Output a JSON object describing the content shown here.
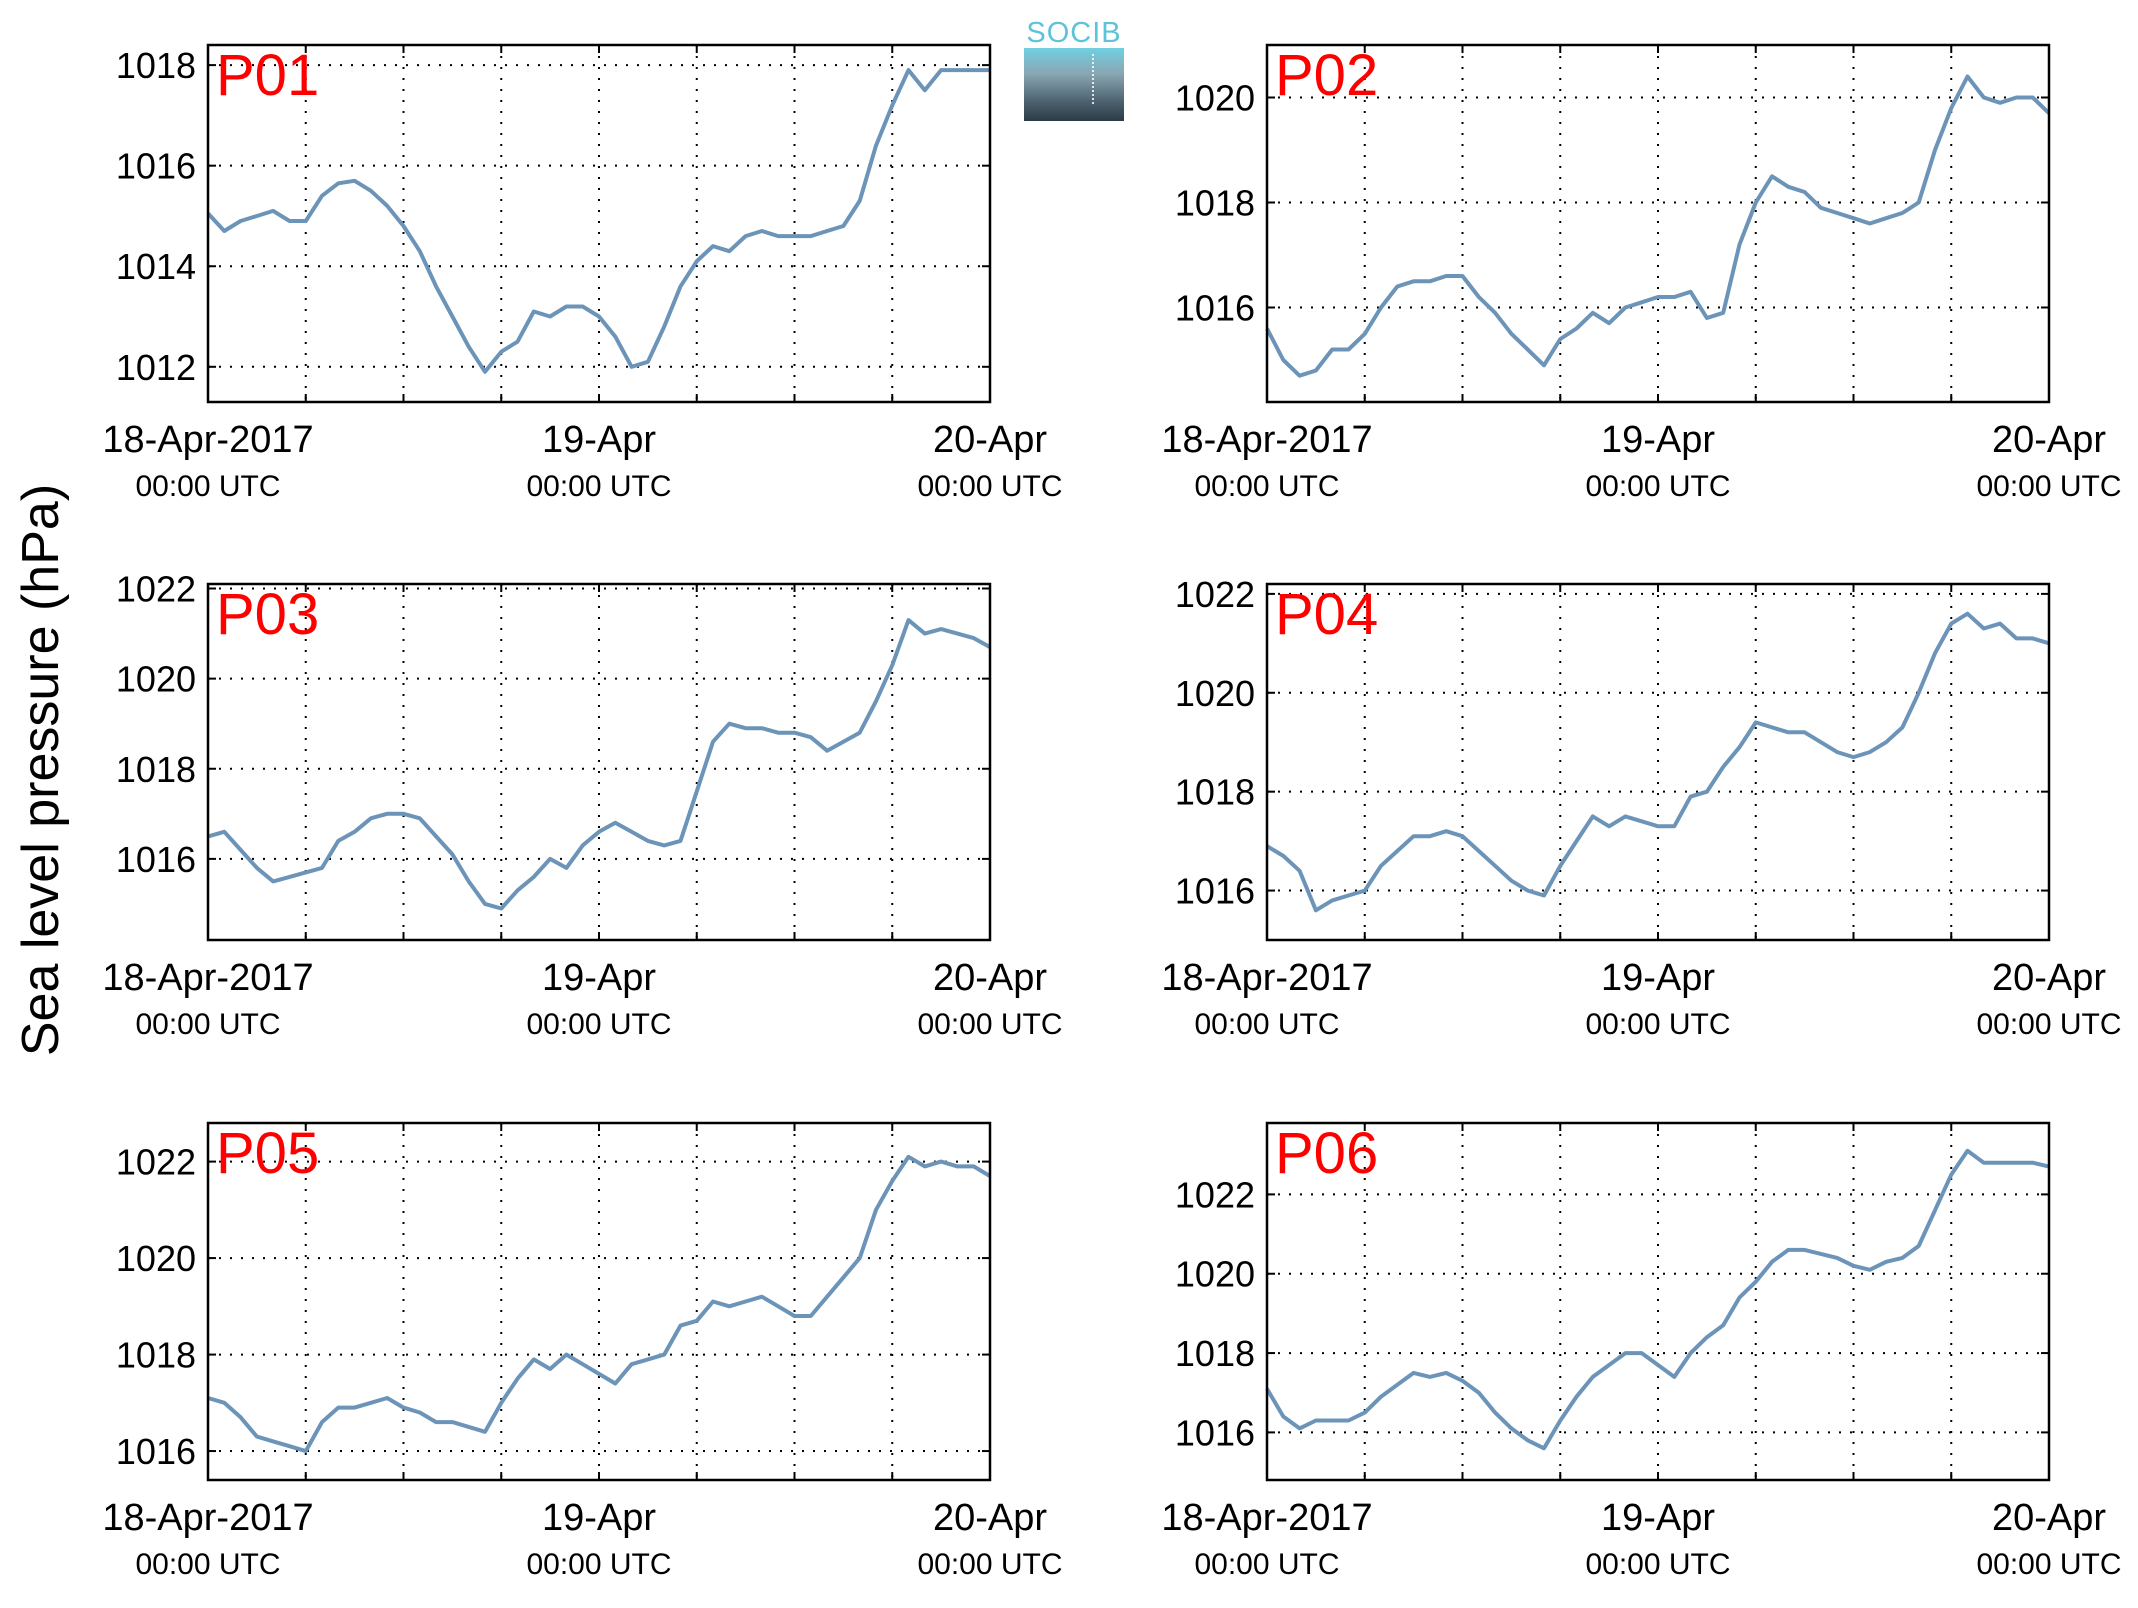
{
  "figure": {
    "ylabel": "Sea level pressure (hPa)",
    "logo_text": "SOCIB",
    "line_color": "#6c94b8",
    "label_color": "#ff0000"
  },
  "chart_data": [
    {
      "type": "line",
      "label": "P01",
      "xticks": [
        {
          "hour": 0,
          "line1": "18-Apr-2017",
          "line2": "00:00 UTC"
        },
        {
          "hour": 24,
          "line1": "19-Apr",
          "line2": "00:00 UTC"
        },
        {
          "hour": 48,
          "line1": "20-Apr",
          "line2": "00:00 UTC"
        }
      ],
      "xlim": [
        0,
        48
      ],
      "ylim": [
        1011.3,
        1018.4
      ],
      "yticks": [
        1012,
        1014,
        1016,
        1018
      ],
      "grid": true,
      "x": [
        0,
        1,
        2,
        3,
        4,
        5,
        6,
        7,
        8,
        9,
        10,
        11,
        12,
        13,
        14,
        15,
        16,
        17,
        18,
        19,
        20,
        21,
        22,
        23,
        24,
        25,
        26,
        27,
        28,
        29,
        30,
        31,
        32,
        33,
        34,
        35,
        36,
        37,
        38,
        39,
        40,
        41,
        42,
        43,
        44,
        45,
        46,
        47,
        48
      ],
      "y": [
        1015.05,
        1014.7,
        1014.9,
        1015.0,
        1015.1,
        1014.9,
        1014.9,
        1015.4,
        1015.65,
        1015.7,
        1015.5,
        1015.2,
        1014.8,
        1014.3,
        1013.6,
        1013.0,
        1012.4,
        1011.9,
        1012.3,
        1012.5,
        1013.1,
        1013.0,
        1013.2,
        1013.2,
        1013.0,
        1012.6,
        1012.0,
        1012.1,
        1012.8,
        1013.6,
        1014.1,
        1014.4,
        1014.3,
        1014.6,
        1014.7,
        1014.6,
        1014.6,
        1014.6,
        1014.7,
        1014.8,
        1015.3,
        1016.4,
        1017.2,
        1017.9,
        1017.5,
        1017.9,
        1017.9,
        1017.9,
        1017.9
      ]
    },
    {
      "type": "line",
      "label": "P02",
      "xticks": [
        {
          "hour": 0,
          "line1": "18-Apr-2017",
          "line2": "00:00 UTC"
        },
        {
          "hour": 24,
          "line1": "19-Apr",
          "line2": "00:00 UTC"
        },
        {
          "hour": 48,
          "line1": "20-Apr",
          "line2": "00:00 UTC"
        }
      ],
      "xlim": [
        0,
        48
      ],
      "ylim": [
        1014.2,
        1021.0
      ],
      "yticks": [
        1016,
        1018,
        1020
      ],
      "grid": true,
      "x": [
        0,
        1,
        2,
        3,
        4,
        5,
        6,
        7,
        8,
        9,
        10,
        11,
        12,
        13,
        14,
        15,
        16,
        17,
        18,
        19,
        20,
        21,
        22,
        23,
        24,
        25,
        26,
        27,
        28,
        29,
        30,
        31,
        32,
        33,
        34,
        35,
        36,
        37,
        38,
        39,
        40,
        41,
        42,
        43,
        44,
        45,
        46,
        47,
        48
      ],
      "y": [
        1015.6,
        1015.0,
        1014.7,
        1014.8,
        1015.2,
        1015.2,
        1015.5,
        1016.0,
        1016.4,
        1016.5,
        1016.5,
        1016.6,
        1016.6,
        1016.2,
        1015.9,
        1015.5,
        1015.2,
        1014.9,
        1015.4,
        1015.6,
        1015.9,
        1015.7,
        1016.0,
        1016.1,
        1016.2,
        1016.2,
        1016.3,
        1015.8,
        1015.9,
        1017.2,
        1018.0,
        1018.5,
        1018.3,
        1018.2,
        1017.9,
        1017.8,
        1017.7,
        1017.6,
        1017.7,
        1017.8,
        1018.0,
        1019.0,
        1019.8,
        1020.4,
        1020.0,
        1019.9,
        1020.0,
        1020.0,
        1019.7
      ]
    },
    {
      "type": "line",
      "label": "P03",
      "xticks": [
        {
          "hour": 0,
          "line1": "18-Apr-2017",
          "line2": "00:00 UTC"
        },
        {
          "hour": 24,
          "line1": "19-Apr",
          "line2": "00:00 UTC"
        },
        {
          "hour": 48,
          "line1": "20-Apr",
          "line2": "00:00 UTC"
        }
      ],
      "xlim": [
        0,
        48
      ],
      "ylim": [
        1014.2,
        1022.1
      ],
      "yticks": [
        1016,
        1018,
        1020,
        1022
      ],
      "grid": true,
      "x": [
        0,
        1,
        2,
        3,
        4,
        5,
        6,
        7,
        8,
        9,
        10,
        11,
        12,
        13,
        14,
        15,
        16,
        17,
        18,
        19,
        20,
        21,
        22,
        23,
        24,
        25,
        26,
        27,
        28,
        29,
        30,
        31,
        32,
        33,
        34,
        35,
        36,
        37,
        38,
        39,
        40,
        41,
        42,
        43,
        44,
        45,
        46,
        47,
        48
      ],
      "y": [
        1016.5,
        1016.6,
        1016.2,
        1015.8,
        1015.5,
        1015.6,
        1015.7,
        1015.8,
        1016.4,
        1016.6,
        1016.9,
        1017.0,
        1017.0,
        1016.9,
        1016.5,
        1016.1,
        1015.5,
        1015.0,
        1014.9,
        1015.3,
        1015.6,
        1016.0,
        1015.8,
        1016.3,
        1016.6,
        1016.8,
        1016.6,
        1016.4,
        1016.3,
        1016.4,
        1017.5,
        1018.6,
        1019.0,
        1018.9,
        1018.9,
        1018.8,
        1018.8,
        1018.7,
        1018.4,
        1018.6,
        1018.8,
        1019.5,
        1020.3,
        1021.3,
        1021.0,
        1021.1,
        1021.0,
        1020.9,
        1020.7
      ]
    },
    {
      "type": "line",
      "label": "P04",
      "xticks": [
        {
          "hour": 0,
          "line1": "18-Apr-2017",
          "line2": "00:00 UTC"
        },
        {
          "hour": 24,
          "line1": "19-Apr",
          "line2": "00:00 UTC"
        },
        {
          "hour": 48,
          "line1": "20-Apr",
          "line2": "00:00 UTC"
        }
      ],
      "xlim": [
        0,
        48
      ],
      "ylim": [
        1015.0,
        1022.2
      ],
      "yticks": [
        1016,
        1018,
        1020,
        1022
      ],
      "grid": true,
      "x": [
        0,
        1,
        2,
        3,
        4,
        5,
        6,
        7,
        8,
        9,
        10,
        11,
        12,
        13,
        14,
        15,
        16,
        17,
        18,
        19,
        20,
        21,
        22,
        23,
        24,
        25,
        26,
        27,
        28,
        29,
        30,
        31,
        32,
        33,
        34,
        35,
        36,
        37,
        38,
        39,
        40,
        41,
        42,
        43,
        44,
        45,
        46,
        47,
        48
      ],
      "y": [
        1016.9,
        1016.7,
        1016.4,
        1015.6,
        1015.8,
        1015.9,
        1016.0,
        1016.5,
        1016.8,
        1017.1,
        1017.1,
        1017.2,
        1017.1,
        1016.8,
        1016.5,
        1016.2,
        1016.0,
        1015.9,
        1016.5,
        1017.0,
        1017.5,
        1017.3,
        1017.5,
        1017.4,
        1017.3,
        1017.3,
        1017.9,
        1018.0,
        1018.5,
        1018.9,
        1019.4,
        1019.3,
        1019.2,
        1019.2,
        1019.0,
        1018.8,
        1018.7,
        1018.8,
        1019.0,
        1019.3,
        1020.0,
        1020.8,
        1021.4,
        1021.6,
        1021.3,
        1021.4,
        1021.1,
        1021.1,
        1021.0
      ]
    },
    {
      "type": "line",
      "label": "P05",
      "xticks": [
        {
          "hour": 0,
          "line1": "18-Apr-2017",
          "line2": "00:00 UTC"
        },
        {
          "hour": 24,
          "line1": "19-Apr",
          "line2": "00:00 UTC"
        },
        {
          "hour": 48,
          "line1": "20-Apr",
          "line2": "00:00 UTC"
        }
      ],
      "xlim": [
        0,
        48
      ],
      "ylim": [
        1015.4,
        1022.8
      ],
      "yticks": [
        1016,
        1018,
        1020,
        1022
      ],
      "grid": true,
      "x": [
        0,
        1,
        2,
        3,
        4,
        5,
        6,
        7,
        8,
        9,
        10,
        11,
        12,
        13,
        14,
        15,
        16,
        17,
        18,
        19,
        20,
        21,
        22,
        23,
        24,
        25,
        26,
        27,
        28,
        29,
        30,
        31,
        32,
        33,
        34,
        35,
        36,
        37,
        38,
        39,
        40,
        41,
        42,
        43,
        44,
        45,
        46,
        47,
        48
      ],
      "y": [
        1017.1,
        1017.0,
        1016.7,
        1016.3,
        1016.2,
        1016.1,
        1016.0,
        1016.6,
        1016.9,
        1016.9,
        1017.0,
        1017.1,
        1016.9,
        1016.8,
        1016.6,
        1016.6,
        1016.5,
        1016.4,
        1017.0,
        1017.5,
        1017.9,
        1017.7,
        1018.0,
        1017.8,
        1017.6,
        1017.4,
        1017.8,
        1017.9,
        1018.0,
        1018.6,
        1018.7,
        1019.1,
        1019.0,
        1019.1,
        1019.2,
        1019.0,
        1018.8,
        1018.8,
        1019.2,
        1019.6,
        1020.0,
        1021.0,
        1021.6,
        1022.1,
        1021.9,
        1022.0,
        1021.9,
        1021.9,
        1021.7
      ]
    },
    {
      "type": "line",
      "label": "P06",
      "xticks": [
        {
          "hour": 0,
          "line1": "18-Apr-2017",
          "line2": "00:00 UTC"
        },
        {
          "hour": 24,
          "line1": "19-Apr",
          "line2": "00:00 UTC"
        },
        {
          "hour": 48,
          "line1": "20-Apr",
          "line2": "00:00 UTC"
        }
      ],
      "xlim": [
        0,
        48
      ],
      "ylim": [
        1014.8,
        1023.8
      ],
      "yticks": [
        1016,
        1018,
        1020,
        1022
      ],
      "grid": true,
      "x": [
        0,
        1,
        2,
        3,
        4,
        5,
        6,
        7,
        8,
        9,
        10,
        11,
        12,
        13,
        14,
        15,
        16,
        17,
        18,
        19,
        20,
        21,
        22,
        23,
        24,
        25,
        26,
        27,
        28,
        29,
        30,
        31,
        32,
        33,
        34,
        35,
        36,
        37,
        38,
        39,
        40,
        41,
        42,
        43,
        44,
        45,
        46,
        47,
        48
      ],
      "y": [
        1017.1,
        1016.4,
        1016.1,
        1016.3,
        1016.3,
        1016.3,
        1016.5,
        1016.9,
        1017.2,
        1017.5,
        1017.4,
        1017.5,
        1017.3,
        1017.0,
        1016.5,
        1016.1,
        1015.8,
        1015.6,
        1016.3,
        1016.9,
        1017.4,
        1017.7,
        1018.0,
        1018.0,
        1017.7,
        1017.4,
        1018.0,
        1018.4,
        1018.7,
        1019.4,
        1019.8,
        1020.3,
        1020.6,
        1020.6,
        1020.5,
        1020.4,
        1020.2,
        1020.1,
        1020.3,
        1020.4,
        1020.7,
        1021.6,
        1022.5,
        1023.1,
        1022.8,
        1022.8,
        1022.8,
        1022.8,
        1022.7
      ]
    }
  ]
}
